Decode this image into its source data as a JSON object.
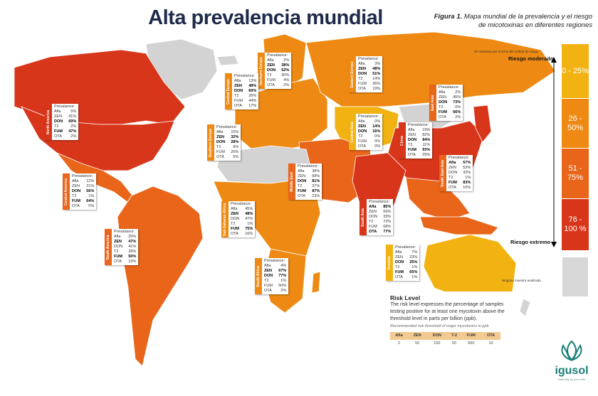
{
  "title": "Alta prevalencia mundial",
  "figure_caption": {
    "label": "Figura 1.",
    "text": "Mapa mundial de la prevalencia y el riesgo de micotoxinas en diferentes regiones"
  },
  "legend": {
    "note": "de muestras por encima del umbral de riesgo",
    "top_label": "Riesgo moderado",
    "bottom_label": "Riesgo extremo",
    "segments": [
      {
        "range": "0 - 25%",
        "color": "#f2b312"
      },
      {
        "range": "26 - 50%",
        "color": "#ee8a13"
      },
      {
        "range": "51 - 75%",
        "color": "#e8651a"
      },
      {
        "range": "76 - 100 %",
        "color": "#d8361a"
      }
    ],
    "no_data_label": "Ninguna muestra analizada",
    "no_data_color": "#d7d7d7"
  },
  "colors": {
    "ocean": "#ffffff",
    "no_data": "#d3d3d3",
    "risk_low": "#f2b312",
    "risk_mid": "#ee8a13",
    "risk_high": "#e8651a",
    "risk_extreme": "#d8361a"
  },
  "regions": [
    {
      "name": "North America",
      "strip_color": "#d8361a",
      "heading": "Prevalance:",
      "rows": [
        [
          "Afla",
          "5%",
          false
        ],
        [
          "ZEN",
          "41%",
          false
        ],
        [
          "DON",
          "69%",
          true
        ],
        [
          "T2",
          "2%",
          false
        ],
        [
          "FUM",
          "47%",
          true
        ],
        [
          "OTA",
          "2%",
          false
        ]
      ]
    },
    {
      "name": "Central America",
      "strip_color": "#e8651a",
      "heading": "Prevalance:",
      "rows": [
        [
          "Afla",
          "12%",
          false
        ],
        [
          "ZEN",
          "21%",
          false
        ],
        [
          "DON",
          "56%",
          true
        ],
        [
          "T2",
          "1%",
          false
        ],
        [
          "FUM",
          "64%",
          true
        ],
        [
          "OTA",
          "5%",
          false
        ]
      ]
    },
    {
      "name": "South America",
      "strip_color": "#e8651a",
      "heading": "Prevalance:",
      "rows": [
        [
          "Afla",
          "25%",
          false
        ],
        [
          "ZEN",
          "47%",
          true
        ],
        [
          "DON",
          "41%",
          false
        ],
        [
          "T2",
          "28%",
          false
        ],
        [
          "FUM",
          "50%",
          true
        ],
        [
          "OTA",
          "19%",
          false
        ]
      ]
    },
    {
      "name": "Northern Europe",
      "strip_color": "#ee8a13",
      "heading": "Prevalance:",
      "rows": [
        [
          "Afla",
          "2%",
          false
        ],
        [
          "ZEN",
          "38%",
          true
        ],
        [
          "DON",
          "52%",
          true
        ],
        [
          "T2",
          "30%",
          false
        ],
        [
          "FUM",
          "4%",
          false
        ],
        [
          "OTA",
          "2%",
          false
        ]
      ]
    },
    {
      "name": "Central Europe",
      "strip_color": "#ee8a13",
      "heading": "Prevalance:",
      "rows": [
        [
          "Afla",
          "13%",
          false
        ],
        [
          "ZEN",
          "48%",
          true
        ],
        [
          "DON",
          "60%",
          true
        ],
        [
          "T2",
          "26%",
          false
        ],
        [
          "FUM",
          "44%",
          false
        ],
        [
          "OTA",
          "17%",
          false
        ]
      ]
    },
    {
      "name": "Southern Europe",
      "strip_color": "#ee8a13",
      "heading": "Prevalance:",
      "rows": [
        [
          "Afla",
          "16%",
          false
        ],
        [
          "ZEN",
          "32%",
          true
        ],
        [
          "DON",
          "28%",
          true
        ],
        [
          "T2",
          "9%",
          false
        ],
        [
          "FUM",
          "26%",
          false
        ],
        [
          "OTA",
          "5%",
          false
        ]
      ]
    },
    {
      "name": "Eastern Europe",
      "strip_color": "#ee8a13",
      "heading": "Prevalance:",
      "rows": [
        [
          "Afla",
          "3%",
          false
        ],
        [
          "ZEN",
          "48%",
          true
        ],
        [
          "DON",
          "51%",
          true
        ],
        [
          "T2",
          "14%",
          false
        ],
        [
          "FUM",
          "36%",
          false
        ],
        [
          "OTA",
          "19%",
          false
        ]
      ]
    },
    {
      "name": "Central Asia",
      "strip_color": "#f2b312",
      "heading": "Prevalance:",
      "rows": [
        [
          "Afla",
          "0%",
          false
        ],
        [
          "ZEN",
          "14%",
          true
        ],
        [
          "DON",
          "16%",
          true
        ],
        [
          "T2",
          "0%",
          false
        ],
        [
          "FUM",
          "0%",
          false
        ],
        [
          "OTA",
          "0%",
          false
        ]
      ]
    },
    {
      "name": "East Asia",
      "strip_color": "#e8651a",
      "heading": "Prevalance:",
      "rows": [
        [
          "Afla",
          "2%",
          false
        ],
        [
          "ZEN",
          "45%",
          false
        ],
        [
          "DON",
          "73%",
          true
        ],
        [
          "T2",
          "0%",
          false
        ],
        [
          "FUM",
          "66%",
          true
        ],
        [
          "OTA",
          "2%",
          false
        ]
      ]
    },
    {
      "name": "China",
      "strip_color": "#d8361a",
      "heading": "Prevalance:",
      "rows": [
        [
          "Afla",
          "19%",
          false
        ],
        [
          "ZEN",
          "82%",
          false
        ],
        [
          "DON",
          "84%",
          true
        ],
        [
          "T2",
          "11%",
          false
        ],
        [
          "FUM",
          "93%",
          true
        ],
        [
          "OTA",
          "29%",
          false
        ]
      ]
    },
    {
      "name": "Middle East",
      "strip_color": "#e8651a",
      "heading": "Prevalance:",
      "rows": [
        [
          "Afla",
          "38%",
          false
        ],
        [
          "ZEN",
          "68%",
          false
        ],
        [
          "DON",
          "81%",
          true
        ],
        [
          "T2",
          "37%",
          false
        ],
        [
          "FUM",
          "87%",
          true
        ],
        [
          "OTA",
          "23%",
          false
        ]
      ]
    },
    {
      "name": "Sub-Saharan Africa",
      "strip_color": "#ee8a13",
      "heading": "Prevalance:",
      "rows": [
        [
          "Afla",
          "45%",
          false
        ],
        [
          "ZEN",
          "48%",
          true
        ],
        [
          "DON",
          "47%",
          false
        ],
        [
          "T2",
          "1%",
          false
        ],
        [
          "FUM",
          "75%",
          true
        ],
        [
          "OTA",
          "16%",
          false
        ]
      ]
    },
    {
      "name": "South Africa",
      "strip_color": "#ee8a13",
      "heading": "Prevalance:",
      "rows": [
        [
          "Afla",
          "4%",
          false
        ],
        [
          "ZEN",
          "67%",
          true
        ],
        [
          "DON",
          "77%",
          true
        ],
        [
          "T2",
          "1%",
          false
        ],
        [
          "FUM",
          "50%",
          false
        ],
        [
          "OTA",
          "2%",
          false
        ]
      ]
    },
    {
      "name": "South Asia",
      "strip_color": "#d8361a",
      "heading": "Prevalance:",
      "rows": [
        [
          "Afla",
          "85%",
          true
        ],
        [
          "ZEN",
          "59%",
          false
        ],
        [
          "DON",
          "33%",
          false
        ],
        [
          "T2",
          "72%",
          false
        ],
        [
          "FUM",
          "68%",
          false
        ],
        [
          "OTA",
          "77%",
          true
        ]
      ]
    },
    {
      "name": "South East Asia",
      "strip_color": "#e8651a",
      "heading": "Prevalance:",
      "rows": [
        [
          "Afla",
          "57%",
          true
        ],
        [
          "ZEN",
          "53%",
          false
        ],
        [
          "DON",
          "32%",
          false
        ],
        [
          "T2",
          "1%",
          false
        ],
        [
          "FUM",
          "83%",
          true
        ],
        [
          "OTA",
          "10%",
          false
        ]
      ]
    },
    {
      "name": "Oceania",
      "strip_color": "#f2b312",
      "heading": "Prevalance:",
      "rows": [
        [
          "Afla",
          "7%",
          false
        ],
        [
          "ZEN",
          "23%",
          false
        ],
        [
          "DON",
          "25%",
          true
        ],
        [
          "T2",
          "1%",
          false
        ],
        [
          "FUM",
          "65%",
          true
        ],
        [
          "OTA",
          "1%",
          false
        ]
      ]
    }
  ],
  "risk_box": {
    "heading": "Risk Level",
    "text": "The risk level expresses the percentage of samples testing positive for at least one mycotoxin above the threshold level in parts per billion (ppb).",
    "subtext": "Recommended risk threshold of major mycotoxins in ppb",
    "table_headers": [
      "Afla",
      "ZEN",
      "DON",
      "T-2",
      "FUM",
      "OTA"
    ],
    "table_values": [
      "2",
      "50",
      "150",
      "50",
      "500",
      "10"
    ]
  },
  "logo": {
    "name": "igusol",
    "tagline": "Naturally by your side"
  }
}
